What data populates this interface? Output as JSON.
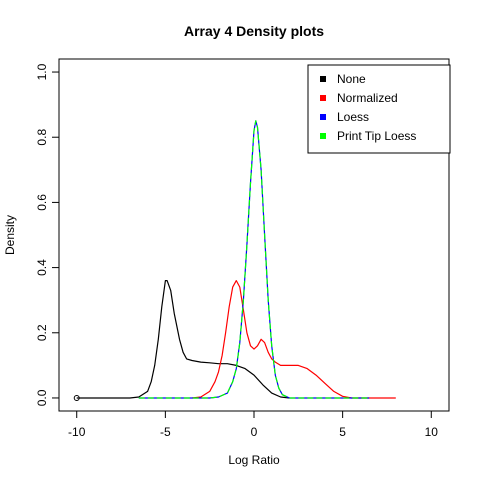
{
  "chart_data": {
    "type": "line",
    "title": "Array 4 Density plots",
    "xlabel": "Log Ratio",
    "ylabel": "Density",
    "xlim": [
      -11,
      11
    ],
    "ylim": [
      -0.04,
      1.04
    ],
    "xticks": [
      -10,
      -5,
      0,
      5,
      10
    ],
    "xtick_labels": [
      "-10",
      "-5",
      "0",
      "5",
      "10"
    ],
    "yticks": [
      0.0,
      0.2,
      0.4,
      0.6,
      0.8,
      1.0
    ],
    "ytick_labels": [
      "0.0",
      "0.2",
      "0.4",
      "0.6",
      "0.8",
      "1.0"
    ],
    "grid": false,
    "legend_position": "top-right",
    "outlier_point": {
      "x": -10,
      "y": 0.0
    },
    "series": [
      {
        "name": "None",
        "color": "#000000",
        "points": [
          [
            -10,
            0.0
          ],
          [
            -7.0,
            0.0
          ],
          [
            -6.5,
            0.003
          ],
          [
            -6.0,
            0.02
          ],
          [
            -5.8,
            0.05
          ],
          [
            -5.6,
            0.1
          ],
          [
            -5.4,
            0.18
          ],
          [
            -5.2,
            0.28
          ],
          [
            -5.0,
            0.36
          ],
          [
            -4.9,
            0.36
          ],
          [
            -4.7,
            0.33
          ],
          [
            -4.5,
            0.26
          ],
          [
            -4.2,
            0.18
          ],
          [
            -4.0,
            0.14
          ],
          [
            -3.8,
            0.12
          ],
          [
            -3.5,
            0.115
          ],
          [
            -3.0,
            0.11
          ],
          [
            -2.5,
            0.108
          ],
          [
            -2.0,
            0.105
          ],
          [
            -1.5,
            0.105
          ],
          [
            -1.0,
            0.1
          ],
          [
            -0.5,
            0.09
          ],
          [
            0.0,
            0.07
          ],
          [
            0.5,
            0.04
          ],
          [
            1.0,
            0.015
          ],
          [
            1.5,
            0.003
          ],
          [
            2.0,
            0.0
          ]
        ]
      },
      {
        "name": "Normalized",
        "color": "#ff0000",
        "points": [
          [
            -3.5,
            0.0
          ],
          [
            -3.0,
            0.003
          ],
          [
            -2.5,
            0.02
          ],
          [
            -2.2,
            0.05
          ],
          [
            -2.0,
            0.08
          ],
          [
            -1.8,
            0.13
          ],
          [
            -1.6,
            0.2
          ],
          [
            -1.4,
            0.28
          ],
          [
            -1.2,
            0.34
          ],
          [
            -1.0,
            0.36
          ],
          [
            -0.8,
            0.34
          ],
          [
            -0.6,
            0.27
          ],
          [
            -0.4,
            0.2
          ],
          [
            -0.2,
            0.16
          ],
          [
            0.0,
            0.15
          ],
          [
            0.2,
            0.16
          ],
          [
            0.4,
            0.18
          ],
          [
            0.6,
            0.17
          ],
          [
            0.8,
            0.14
          ],
          [
            1.0,
            0.12
          ],
          [
            1.2,
            0.11
          ],
          [
            1.5,
            0.1
          ],
          [
            2.0,
            0.1
          ],
          [
            2.5,
            0.1
          ],
          [
            3.0,
            0.09
          ],
          [
            3.5,
            0.07
          ],
          [
            4.0,
            0.045
          ],
          [
            4.5,
            0.02
          ],
          [
            5.0,
            0.005
          ],
          [
            5.5,
            0.0
          ],
          [
            8.0,
            0.0
          ]
        ]
      },
      {
        "name": "Loess",
        "color": "#0000ff",
        "points": [
          [
            -6.5,
            0.0
          ],
          [
            -2.5,
            0.0
          ],
          [
            -2.0,
            0.003
          ],
          [
            -1.5,
            0.015
          ],
          [
            -1.2,
            0.05
          ],
          [
            -1.0,
            0.09
          ],
          [
            -0.8,
            0.17
          ],
          [
            -0.6,
            0.3
          ],
          [
            -0.4,
            0.47
          ],
          [
            -0.2,
            0.66
          ],
          [
            0.0,
            0.82
          ],
          [
            0.1,
            0.85
          ],
          [
            0.2,
            0.83
          ],
          [
            0.4,
            0.7
          ],
          [
            0.6,
            0.5
          ],
          [
            0.8,
            0.3
          ],
          [
            1.0,
            0.16
          ],
          [
            1.2,
            0.07
          ],
          [
            1.4,
            0.03
          ],
          [
            1.6,
            0.01
          ],
          [
            2.0,
            0.0
          ],
          [
            6.5,
            0.0
          ]
        ]
      },
      {
        "name": "Print Tip Loess",
        "color": "#00ff00",
        "points": [
          [
            -6.5,
            0.0
          ],
          [
            -2.5,
            0.0
          ],
          [
            -2.0,
            0.003
          ],
          [
            -1.5,
            0.015
          ],
          [
            -1.2,
            0.05
          ],
          [
            -1.0,
            0.09
          ],
          [
            -0.8,
            0.17
          ],
          [
            -0.6,
            0.3
          ],
          [
            -0.4,
            0.47
          ],
          [
            -0.2,
            0.66
          ],
          [
            0.0,
            0.82
          ],
          [
            0.1,
            0.85
          ],
          [
            0.2,
            0.83
          ],
          [
            0.4,
            0.7
          ],
          [
            0.6,
            0.5
          ],
          [
            0.8,
            0.3
          ],
          [
            1.0,
            0.16
          ],
          [
            1.2,
            0.07
          ],
          [
            1.4,
            0.03
          ],
          [
            1.6,
            0.01
          ],
          [
            2.0,
            0.0
          ],
          [
            6.5,
            0.0
          ]
        ]
      }
    ]
  }
}
